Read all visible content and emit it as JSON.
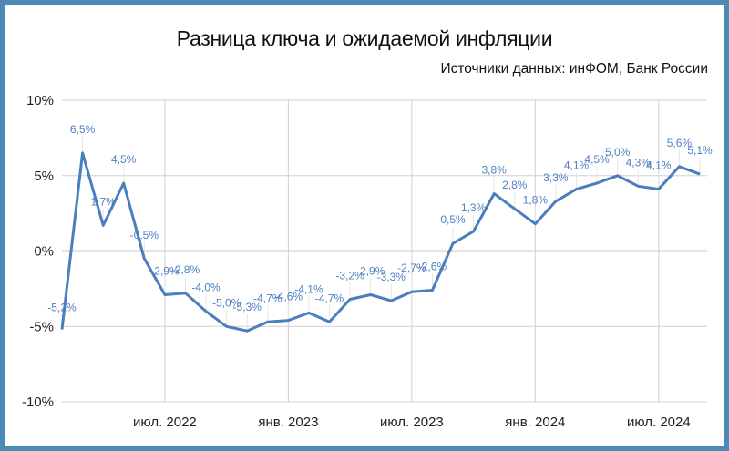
{
  "title": "Разница ключа и ожидаемой инфляции",
  "subtitle": "Источники данных: инФОМ, Банк России",
  "colors": {
    "frame": "#4a8ab5",
    "line": "#4a7ebf",
    "label": "#4f7fc0",
    "grid": "#d0d0d0",
    "zero": "#222222"
  },
  "chart_data": {
    "type": "line",
    "title": "Разница ключа и ожидаемой инфляции",
    "subtitle": "Источники данных: инФОМ, Банк России",
    "xlabel": "",
    "ylabel": "",
    "ylim": [
      -10,
      10
    ],
    "y_ticks": [
      "10%",
      "5%",
      "0%",
      "-5%",
      "-10%"
    ],
    "x_ticks": [
      {
        "label": "июл. 2022",
        "index": 5
      },
      {
        "label": "янв. 2023",
        "index": 11
      },
      {
        "label": "июл. 2023",
        "index": 17
      },
      {
        "label": "янв. 2024",
        "index": 23
      },
      {
        "label": "июл. 2024",
        "index": 29
      }
    ],
    "grid": true,
    "legend": "none",
    "series": [
      {
        "name": "Разница ключа и ожидаемой инфляции",
        "values": [
          -5.2,
          6.5,
          1.7,
          4.5,
          -0.5,
          -2.9,
          -2.8,
          -4.0,
          -5.0,
          -5.3,
          -4.7,
          -4.6,
          -4.1,
          -4.7,
          -3.2,
          -2.9,
          -3.3,
          -2.7,
          -2.6,
          0.5,
          1.3,
          3.8,
          2.8,
          1.8,
          3.3,
          4.1,
          4.5,
          5.0,
          4.3,
          4.1,
          5.6,
          5.1
        ],
        "labels": [
          "-5,2%",
          "6,5%",
          "1,7%",
          "4,5%",
          "-0,5%",
          "-2,9%",
          "-2,8%",
          "-4,0%",
          "-5,0%",
          "-5,3%",
          "-4,7%",
          "-4,6%",
          "-4,1%",
          "-4,7%",
          "-3,2%",
          "-2,9%",
          "-3,3%",
          "-2,7%",
          "-2,6%",
          "0,5%",
          "1,3%",
          "3,8%",
          "2,8%",
          "1,8%",
          "3,3%",
          "4,1%",
          "4,5%",
          "5,0%",
          "4,3%",
          "4,1%",
          "5,6%",
          "5,1%"
        ]
      }
    ]
  }
}
